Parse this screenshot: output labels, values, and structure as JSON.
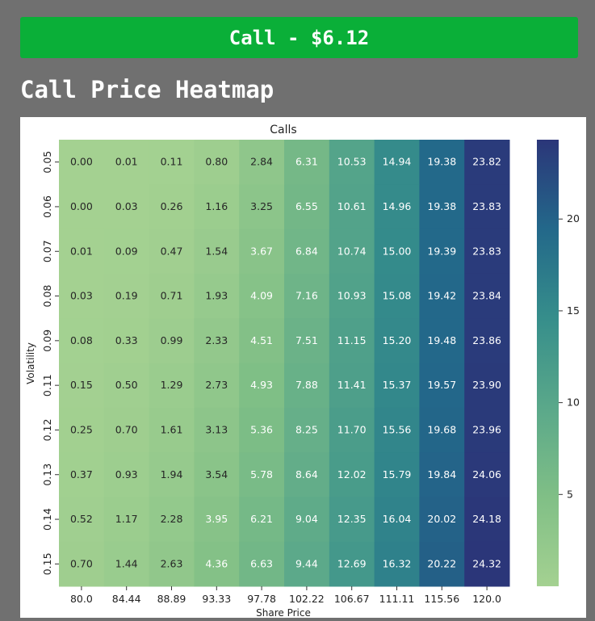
{
  "banner": {
    "text": "Call - $6.12",
    "color": "#0aaf38"
  },
  "heading": "Call Price Heatmap",
  "chart_data": {
    "type": "heatmap",
    "title": "Calls",
    "xlabel": "Share Price",
    "ylabel": "Volatility",
    "x": [
      "80.0",
      "84.44",
      "88.89",
      "93.33",
      "97.78",
      "102.22",
      "106.67",
      "111.11",
      "115.56",
      "120.0"
    ],
    "y": [
      "0.05",
      "0.06",
      "0.07",
      "0.08",
      "0.09",
      "0.11",
      "0.12",
      "0.13",
      "0.14",
      "0.15"
    ],
    "values": [
      [
        0.0,
        0.01,
        0.11,
        0.8,
        2.84,
        6.31,
        10.53,
        14.94,
        19.38,
        23.82
      ],
      [
        0.0,
        0.03,
        0.26,
        1.16,
        3.25,
        6.55,
        10.61,
        14.96,
        19.38,
        23.83
      ],
      [
        0.01,
        0.09,
        0.47,
        1.54,
        3.67,
        6.84,
        10.74,
        15.0,
        19.39,
        23.83
      ],
      [
        0.03,
        0.19,
        0.71,
        1.93,
        4.09,
        7.16,
        10.93,
        15.08,
        19.42,
        23.84
      ],
      [
        0.08,
        0.33,
        0.99,
        2.33,
        4.51,
        7.51,
        11.15,
        15.2,
        19.48,
        23.86
      ],
      [
        0.15,
        0.5,
        1.29,
        2.73,
        4.93,
        7.88,
        11.41,
        15.37,
        19.57,
        23.9
      ],
      [
        0.25,
        0.7,
        1.61,
        3.13,
        5.36,
        8.25,
        11.7,
        15.56,
        19.68,
        23.96
      ],
      [
        0.37,
        0.93,
        1.94,
        3.54,
        5.78,
        8.64,
        12.02,
        15.79,
        19.84,
        24.06
      ],
      [
        0.52,
        1.17,
        2.28,
        3.95,
        6.21,
        9.04,
        12.35,
        16.04,
        20.02,
        24.18
      ],
      [
        0.7,
        1.44,
        2.63,
        4.36,
        6.63,
        9.44,
        12.69,
        16.32,
        20.22,
        24.32
      ]
    ],
    "value_format": "2 decimals",
    "colormap": "crest",
    "colorbar": {
      "ticks": [
        "5",
        "10",
        "15",
        "20"
      ],
      "range": [
        0,
        24.32
      ]
    },
    "grid": false
  }
}
